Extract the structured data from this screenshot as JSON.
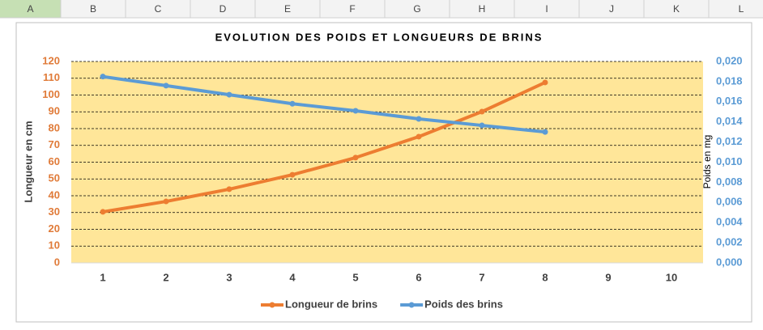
{
  "column_headers": [
    "A",
    "B",
    "C",
    "D",
    "E",
    "F",
    "G",
    "H",
    "I",
    "J",
    "K",
    "L"
  ],
  "chart_data": {
    "type": "line",
    "title": "EVOLUTION DES POIDS ET LONGUEURS DE BRINS",
    "y_label": "Longueur en cm",
    "y2_label": "Poids en mg",
    "categories": [
      "1",
      "2",
      "3",
      "4",
      "5",
      "6",
      "7",
      "8",
      "9",
      "10"
    ],
    "series": [
      {
        "name": "Longueur de brins",
        "color": "#ed7d31",
        "values": [
          30.4,
          36.6,
          43.9,
          52.5,
          62.7,
          75.2,
          90.1,
          107.5,
          null,
          null
        ]
      },
      {
        "name": "Poids des brins",
        "color": "#5b9bd5",
        "axis": "y2",
        "values": [
          0.0185,
          0.0176,
          0.0167,
          0.0158,
          0.0151,
          0.0143,
          0.01365,
          0.013,
          null,
          null
        ]
      }
    ],
    "ylim": [
      0,
      120
    ],
    "yticks": [
      0,
      10,
      20,
      30,
      40,
      50,
      60,
      70,
      80,
      90,
      100,
      110,
      120
    ],
    "y2lim": [
      0,
      0.02
    ],
    "y2ticks": [
      {
        "value": 0,
        "label": "0,000"
      },
      {
        "value": 0.002,
        "label": "0,002"
      },
      {
        "value": 0.004,
        "label": "0,004"
      },
      {
        "value": 0.006,
        "label": "0,006"
      },
      {
        "value": 0.008,
        "label": "0,008"
      },
      {
        "value": 0.01,
        "label": "0,010"
      },
      {
        "value": 0.012,
        "label": "0,012"
      },
      {
        "value": 0.014,
        "label": "0,014"
      },
      {
        "value": 0.016,
        "label": "0,016"
      },
      {
        "value": 0.018,
        "label": "0,018"
      },
      {
        "value": 0.02,
        "label": "0,020"
      }
    ],
    "grid": true,
    "legend": "bottom"
  }
}
